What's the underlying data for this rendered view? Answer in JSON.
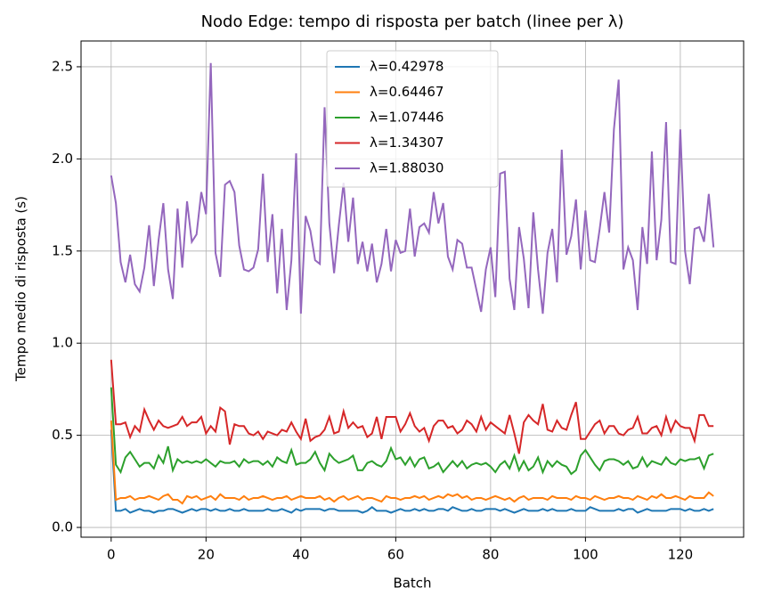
{
  "chart_data": {
    "type": "line",
    "title": "Nodo Edge: tempo di risposta per batch (linee per λ)",
    "xlabel": "Batch",
    "ylabel": "Tempo medio di risposta (s)",
    "x": [
      0,
      1,
      2,
      3,
      4,
      5,
      6,
      7,
      8,
      9,
      10,
      11,
      12,
      13,
      14,
      15,
      16,
      17,
      18,
      19,
      20,
      21,
      22,
      23,
      24,
      25,
      26,
      27,
      28,
      29,
      30,
      31,
      32,
      33,
      34,
      35,
      36,
      37,
      38,
      39,
      40,
      41,
      42,
      43,
      44,
      45,
      46,
      47,
      48,
      49,
      50,
      51,
      52,
      53,
      54,
      55,
      56,
      57,
      58,
      59,
      60,
      61,
      62,
      63,
      64,
      65,
      66,
      67,
      68,
      69,
      70,
      71,
      72,
      73,
      74,
      75,
      76,
      77,
      78,
      79,
      80,
      81,
      82,
      83,
      84,
      85,
      86,
      87,
      88,
      89,
      90,
      91,
      92,
      93,
      94,
      95,
      96,
      97,
      98,
      99,
      100,
      101,
      102,
      103,
      104,
      105,
      106,
      107,
      108,
      109,
      110,
      111,
      112,
      113,
      114,
      115,
      116,
      117,
      118,
      119,
      120,
      121,
      122,
      123,
      124,
      125,
      126,
      127
    ],
    "series": [
      {
        "name": "λ=0.42978",
        "color": "#1f77b4",
        "values": [
          0.53,
          0.09,
          0.09,
          0.1,
          0.08,
          0.09,
          0.1,
          0.09,
          0.09,
          0.08,
          0.09,
          0.09,
          0.1,
          0.1,
          0.09,
          0.08,
          0.09,
          0.1,
          0.09,
          0.1,
          0.1,
          0.09,
          0.1,
          0.09,
          0.09,
          0.1,
          0.09,
          0.09,
          0.1,
          0.09,
          0.09,
          0.09,
          0.09,
          0.1,
          0.09,
          0.09,
          0.1,
          0.09,
          0.08,
          0.1,
          0.09,
          0.1,
          0.1,
          0.1,
          0.1,
          0.09,
          0.1,
          0.1,
          0.09,
          0.09,
          0.09,
          0.09,
          0.09,
          0.08,
          0.09,
          0.11,
          0.09,
          0.09,
          0.09,
          0.08,
          0.09,
          0.1,
          0.09,
          0.09,
          0.1,
          0.09,
          0.1,
          0.09,
          0.09,
          0.1,
          0.1,
          0.09,
          0.11,
          0.1,
          0.09,
          0.09,
          0.1,
          0.09,
          0.09,
          0.1,
          0.1,
          0.1,
          0.09,
          0.1,
          0.09,
          0.08,
          0.09,
          0.1,
          0.09,
          0.09,
          0.09,
          0.1,
          0.09,
          0.1,
          0.09,
          0.09,
          0.09,
          0.1,
          0.09,
          0.09,
          0.09,
          0.11,
          0.1,
          0.09,
          0.09,
          0.09,
          0.09,
          0.1,
          0.09,
          0.1,
          0.1,
          0.08,
          0.09,
          0.1,
          0.09,
          0.09,
          0.09,
          0.09,
          0.1,
          0.1,
          0.1,
          0.09,
          0.1,
          0.09,
          0.09,
          0.1,
          0.09,
          0.1
        ]
      },
      {
        "name": "λ=0.64467",
        "color": "#ff7f0e",
        "values": [
          0.58,
          0.15,
          0.16,
          0.16,
          0.17,
          0.15,
          0.16,
          0.16,
          0.17,
          0.16,
          0.15,
          0.17,
          0.18,
          0.15,
          0.15,
          0.13,
          0.17,
          0.16,
          0.17,
          0.15,
          0.16,
          0.17,
          0.15,
          0.18,
          0.16,
          0.16,
          0.16,
          0.15,
          0.17,
          0.15,
          0.16,
          0.16,
          0.17,
          0.16,
          0.15,
          0.16,
          0.16,
          0.17,
          0.15,
          0.16,
          0.17,
          0.16,
          0.16,
          0.16,
          0.17,
          0.15,
          0.16,
          0.14,
          0.16,
          0.17,
          0.15,
          0.16,
          0.17,
          0.15,
          0.16,
          0.16,
          0.15,
          0.14,
          0.17,
          0.16,
          0.16,
          0.15,
          0.16,
          0.16,
          0.17,
          0.16,
          0.17,
          0.15,
          0.16,
          0.17,
          0.16,
          0.18,
          0.17,
          0.18,
          0.16,
          0.17,
          0.15,
          0.16,
          0.16,
          0.15,
          0.16,
          0.17,
          0.16,
          0.15,
          0.16,
          0.14,
          0.16,
          0.17,
          0.15,
          0.16,
          0.16,
          0.16,
          0.15,
          0.17,
          0.16,
          0.16,
          0.16,
          0.15,
          0.17,
          0.16,
          0.16,
          0.15,
          0.17,
          0.16,
          0.15,
          0.16,
          0.16,
          0.17,
          0.16,
          0.16,
          0.15,
          0.17,
          0.16,
          0.15,
          0.17,
          0.16,
          0.18,
          0.16,
          0.16,
          0.17,
          0.16,
          0.15,
          0.17,
          0.16,
          0.16,
          0.16,
          0.19,
          0.17
        ]
      },
      {
        "name": "λ=1.07446",
        "color": "#2ca02c",
        "values": [
          0.76,
          0.34,
          0.3,
          0.38,
          0.41,
          0.37,
          0.33,
          0.35,
          0.35,
          0.32,
          0.39,
          0.35,
          0.44,
          0.31,
          0.37,
          0.35,
          0.36,
          0.35,
          0.36,
          0.35,
          0.37,
          0.35,
          0.33,
          0.36,
          0.35,
          0.35,
          0.36,
          0.33,
          0.37,
          0.35,
          0.36,
          0.36,
          0.34,
          0.36,
          0.33,
          0.38,
          0.36,
          0.35,
          0.42,
          0.34,
          0.35,
          0.35,
          0.37,
          0.41,
          0.35,
          0.31,
          0.4,
          0.37,
          0.35,
          0.36,
          0.37,
          0.39,
          0.31,
          0.31,
          0.35,
          0.36,
          0.34,
          0.33,
          0.36,
          0.43,
          0.37,
          0.38,
          0.34,
          0.38,
          0.33,
          0.37,
          0.38,
          0.32,
          0.33,
          0.35,
          0.3,
          0.33,
          0.36,
          0.33,
          0.36,
          0.32,
          0.34,
          0.35,
          0.34,
          0.35,
          0.33,
          0.3,
          0.34,
          0.36,
          0.32,
          0.39,
          0.31,
          0.36,
          0.31,
          0.33,
          0.38,
          0.3,
          0.36,
          0.33,
          0.36,
          0.34,
          0.33,
          0.29,
          0.31,
          0.39,
          0.42,
          0.38,
          0.34,
          0.31,
          0.36,
          0.37,
          0.37,
          0.36,
          0.34,
          0.36,
          0.32,
          0.33,
          0.38,
          0.33,
          0.36,
          0.35,
          0.34,
          0.38,
          0.35,
          0.34,
          0.37,
          0.36,
          0.37,
          0.37,
          0.38,
          0.32,
          0.39,
          0.4
        ]
      },
      {
        "name": "λ=1.34307",
        "color": "#d62728",
        "values": [
          0.91,
          0.56,
          0.56,
          0.57,
          0.49,
          0.55,
          0.52,
          0.64,
          0.58,
          0.53,
          0.58,
          0.55,
          0.54,
          0.55,
          0.56,
          0.6,
          0.55,
          0.57,
          0.57,
          0.6,
          0.51,
          0.55,
          0.52,
          0.65,
          0.63,
          0.45,
          0.56,
          0.55,
          0.55,
          0.51,
          0.5,
          0.52,
          0.48,
          0.52,
          0.51,
          0.5,
          0.53,
          0.52,
          0.57,
          0.52,
          0.48,
          0.59,
          0.47,
          0.49,
          0.5,
          0.53,
          0.6,
          0.51,
          0.52,
          0.63,
          0.54,
          0.57,
          0.54,
          0.55,
          0.49,
          0.51,
          0.6,
          0.48,
          0.6,
          0.6,
          0.6,
          0.52,
          0.56,
          0.62,
          0.55,
          0.52,
          0.54,
          0.47,
          0.55,
          0.58,
          0.58,
          0.54,
          0.55,
          0.51,
          0.53,
          0.58,
          0.56,
          0.52,
          0.6,
          0.53,
          0.57,
          0.55,
          0.53,
          0.51,
          0.61,
          0.51,
          0.4,
          0.57,
          0.61,
          0.58,
          0.56,
          0.67,
          0.53,
          0.52,
          0.58,
          0.54,
          0.53,
          0.61,
          0.68,
          0.48,
          0.48,
          0.52,
          0.56,
          0.58,
          0.51,
          0.55,
          0.55,
          0.51,
          0.5,
          0.53,
          0.54,
          0.6,
          0.51,
          0.51,
          0.54,
          0.55,
          0.5,
          0.6,
          0.52,
          0.58,
          0.55,
          0.54,
          0.54,
          0.47,
          0.61,
          0.61,
          0.55,
          0.55
        ]
      },
      {
        "name": "λ=1.88030",
        "color": "#9467bd",
        "values": [
          1.91,
          1.76,
          1.44,
          1.33,
          1.48,
          1.32,
          1.28,
          1.41,
          1.64,
          1.31,
          1.56,
          1.76,
          1.4,
          1.24,
          1.73,
          1.41,
          1.77,
          1.55,
          1.59,
          1.82,
          1.7,
          2.52,
          1.49,
          1.36,
          1.86,
          1.88,
          1.82,
          1.53,
          1.4,
          1.39,
          1.41,
          1.51,
          1.92,
          1.44,
          1.7,
          1.27,
          1.62,
          1.18,
          1.45,
          2.03,
          1.16,
          1.69,
          1.61,
          1.45,
          1.43,
          2.28,
          1.65,
          1.38,
          1.64,
          1.87,
          1.55,
          1.79,
          1.43,
          1.55,
          1.39,
          1.54,
          1.33,
          1.43,
          1.62,
          1.39,
          1.56,
          1.49,
          1.5,
          1.73,
          1.47,
          1.63,
          1.65,
          1.6,
          1.82,
          1.65,
          1.76,
          1.47,
          1.4,
          1.56,
          1.54,
          1.41,
          1.41,
          1.29,
          1.17,
          1.4,
          1.52,
          1.25,
          1.92,
          1.93,
          1.35,
          1.18,
          1.63,
          1.46,
          1.19,
          1.71,
          1.4,
          1.16,
          1.49,
          1.62,
          1.33,
          2.05,
          1.48,
          1.58,
          1.78,
          1.4,
          1.72,
          1.45,
          1.44,
          1.62,
          1.82,
          1.6,
          2.16,
          2.43,
          1.4,
          1.52,
          1.45,
          1.18,
          1.63,
          1.43,
          2.04,
          1.45,
          1.67,
          2.2,
          1.44,
          1.43,
          2.16,
          1.5,
          1.32,
          1.62,
          1.63,
          1.55,
          1.81,
          1.52
        ]
      }
    ],
    "xlim": [
      -6.35,
      133.35
    ],
    "xticks": [
      0,
      20,
      40,
      60,
      80,
      100,
      120
    ],
    "ylim": [
      -0.053,
      2.64
    ],
    "yticks": [
      {
        "value": 0,
        "label": "0.0"
      },
      0.5,
      {
        "value": 1,
        "label": "1.0"
      },
      1.5,
      {
        "value": 2,
        "label": "2.0"
      },
      2.5
    ],
    "grid": true,
    "legend": "upper center"
  }
}
